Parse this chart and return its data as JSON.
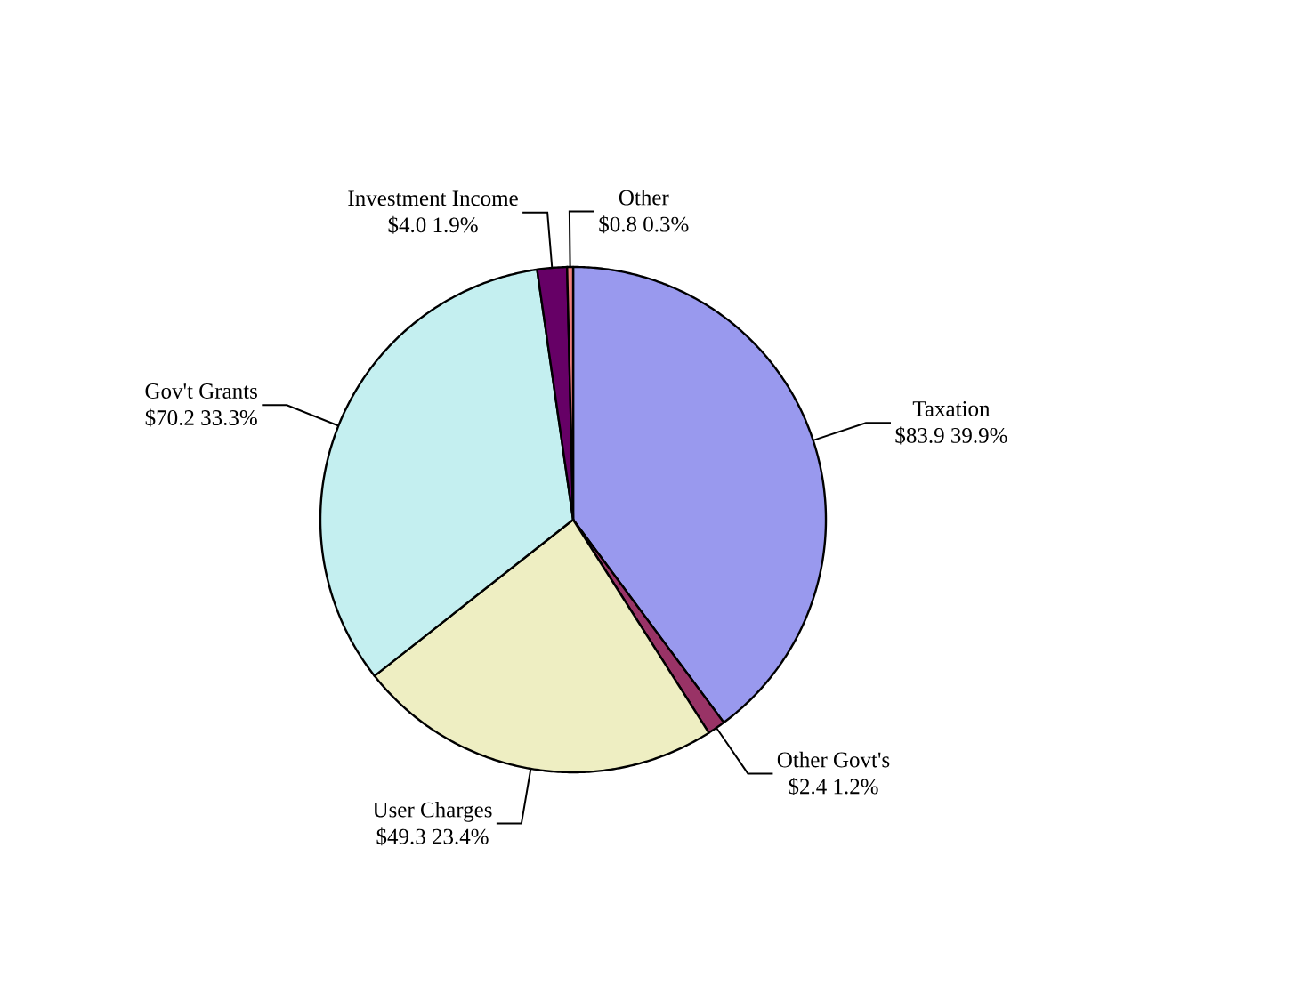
{
  "chart_data": {
    "type": "pie",
    "categories": [
      "Taxation",
      "Other Govt's",
      "User Charges",
      "Gov't Grants",
      "Investment Income",
      "Other"
    ],
    "values": [
      83.9,
      2.4,
      49.3,
      70.2,
      4.0,
      0.8
    ],
    "value_labels": [
      "$83.9 39.9%",
      "$2.4 1.2%",
      "$49.3 23.4%",
      "$70.2 33.3%",
      "$4.0 1.9%",
      "$0.8 0.3%"
    ],
    "colors": [
      "#9999ee",
      "#993366",
      "#eeeec2",
      "#c4eff0",
      "#660066",
      "#f08080"
    ]
  }
}
